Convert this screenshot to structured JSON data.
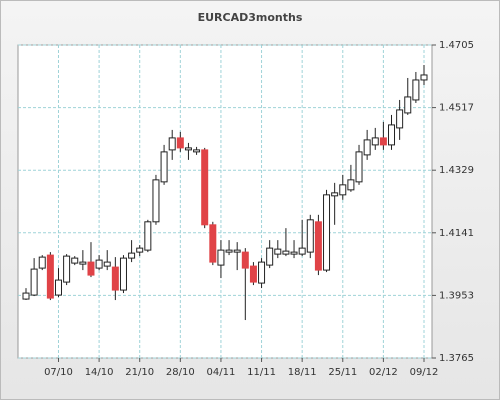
{
  "chart_data": {
    "type": "candlestick",
    "title": "EURCAD3months",
    "categories": [
      null,
      null,
      null,
      null,
      "07/10",
      null,
      null,
      null,
      null,
      "14/10",
      null,
      null,
      null,
      null,
      "21/10",
      null,
      null,
      null,
      null,
      "28/10",
      null,
      null,
      null,
      null,
      "04/11",
      null,
      null,
      null,
      null,
      "11/11",
      null,
      null,
      null,
      null,
      "18/11",
      null,
      null,
      null,
      null,
      "25/11",
      null,
      null,
      null,
      null,
      "02/12",
      null,
      null,
      null,
      null,
      "09/12"
    ],
    "open": [
      1.3942,
      1.3954,
      1.4035,
      1.4074,
      1.3954,
      1.3993,
      1.405,
      1.4047,
      1.4053,
      1.4035,
      1.4041,
      1.4038,
      1.3969,
      1.4065,
      1.4083,
      1.4089,
      1.4174,
      1.4294,
      1.439,
      1.4426,
      1.439,
      1.4384,
      1.439,
      1.4165,
      1.4044,
      1.4083,
      1.4083,
      1.4083,
      1.4041,
      1.399,
      1.4044,
      1.4077,
      1.4077,
      1.4077,
      1.4077,
      1.4083,
      1.4174,
      1.4029,
      1.4252,
      1.4255,
      1.427,
      1.4294,
      1.4375,
      1.4405,
      1.4426,
      1.4405,
      1.4456,
      1.4501,
      1.454,
      1.46
    ],
    "high": [
      1.3975,
      1.4065,
      1.4074,
      1.4083,
      1.4035,
      1.4077,
      1.4071,
      1.4089,
      1.4113,
      1.4074,
      1.4089,
      1.4068,
      1.4074,
      1.4119,
      1.4104,
      1.418,
      1.4315,
      1.4405,
      1.445,
      1.4444,
      1.4411,
      1.4399,
      1.4396,
      1.4174,
      1.4119,
      1.4119,
      1.4113,
      1.4095,
      1.4053,
      1.4065,
      1.4119,
      1.4119,
      1.4155,
      1.4119,
      1.418,
      1.4195,
      1.4195,
      1.427,
      1.4291,
      1.4315,
      1.4345,
      1.4405,
      1.445,
      1.4456,
      1.4474,
      1.4495,
      1.454,
      1.4606,
      1.4624,
      1.4645
    ],
    "low": [
      1.3939,
      1.3951,
      1.4029,
      1.3939,
      1.3948,
      1.3984,
      1.4044,
      1.4029,
      1.4008,
      1.4029,
      1.4029,
      1.3939,
      1.396,
      1.4053,
      1.4071,
      1.4083,
      1.4165,
      1.4285,
      1.436,
      1.4384,
      1.436,
      1.4375,
      1.4155,
      1.4044,
      1.4005,
      1.4074,
      1.4029,
      1.3879,
      1.3984,
      1.3975,
      1.4035,
      1.4065,
      1.4071,
      1.4065,
      1.4071,
      1.4065,
      1.4014,
      1.4023,
      1.4165,
      1.424,
      1.4264,
      1.4285,
      1.436,
      1.439,
      1.439,
      1.439,
      1.442,
      1.4495,
      1.4531,
      1.4585
    ],
    "close": [
      1.396,
      1.4032,
      1.4068,
      1.3945,
      1.3999,
      1.4071,
      1.4065,
      1.4053,
      1.4014,
      1.4059,
      1.4053,
      1.3969,
      1.4065,
      1.408,
      1.4095,
      1.4174,
      1.43,
      1.4384,
      1.4426,
      1.4396,
      1.4396,
      1.439,
      1.4165,
      1.4053,
      1.4089,
      1.4089,
      1.4089,
      1.4035,
      1.3993,
      1.4053,
      1.4095,
      1.4092,
      1.4086,
      1.4083,
      1.4095,
      1.418,
      1.4029,
      1.4255,
      1.4261,
      1.4285,
      1.43,
      1.4384,
      1.442,
      1.4426,
      1.4405,
      1.4465,
      1.451,
      1.4549,
      1.46,
      1.4615
    ],
    "up_color": "#ffffff",
    "down_color": "#e04347",
    "ylim": [
      1.3765,
      1.4705
    ],
    "yticks": [
      1.3765,
      1.3953,
      1.4141,
      1.4329,
      1.4517,
      1.4705
    ],
    "grid": true
  }
}
